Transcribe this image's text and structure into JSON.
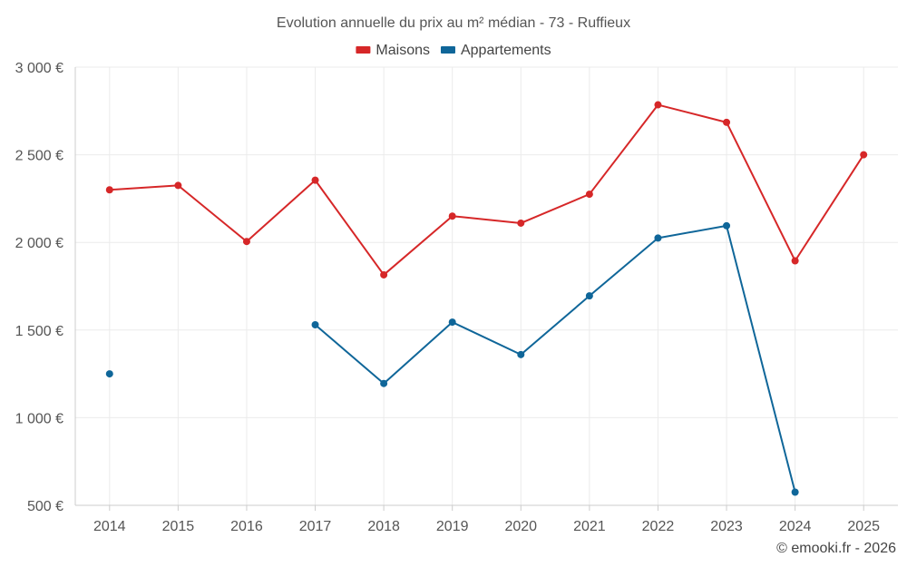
{
  "chart_data": {
    "type": "line",
    "title": "Evolution annuelle du prix au m² médian - 73 - Ruffieux",
    "categories": [
      "2014",
      "2015",
      "2016",
      "2017",
      "2018",
      "2019",
      "2020",
      "2021",
      "2022",
      "2023",
      "2024",
      "2025"
    ],
    "series": [
      {
        "name": "Maisons",
        "color": "#d62728",
        "values": [
          2300,
          2325,
          2005,
          2355,
          1815,
          2150,
          2110,
          2275,
          2785,
          2685,
          1895,
          2500
        ]
      },
      {
        "name": "Appartements",
        "color": "#0f6699",
        "values": [
          1250,
          null,
          null,
          1530,
          1195,
          1545,
          1360,
          1695,
          2025,
          2095,
          575,
          null
        ]
      }
    ],
    "ylim": [
      500,
      3000
    ],
    "yticks": [
      500,
      1000,
      1500,
      2000,
      2500,
      3000
    ],
    "ytick_labels": [
      "500 €",
      "1 000 €",
      "1 500 €",
      "2 000 €",
      "2 500 €",
      "3 000 €"
    ],
    "legend_position": "top-center",
    "grid": true
  },
  "credit": "© emooki.fr - 2026"
}
